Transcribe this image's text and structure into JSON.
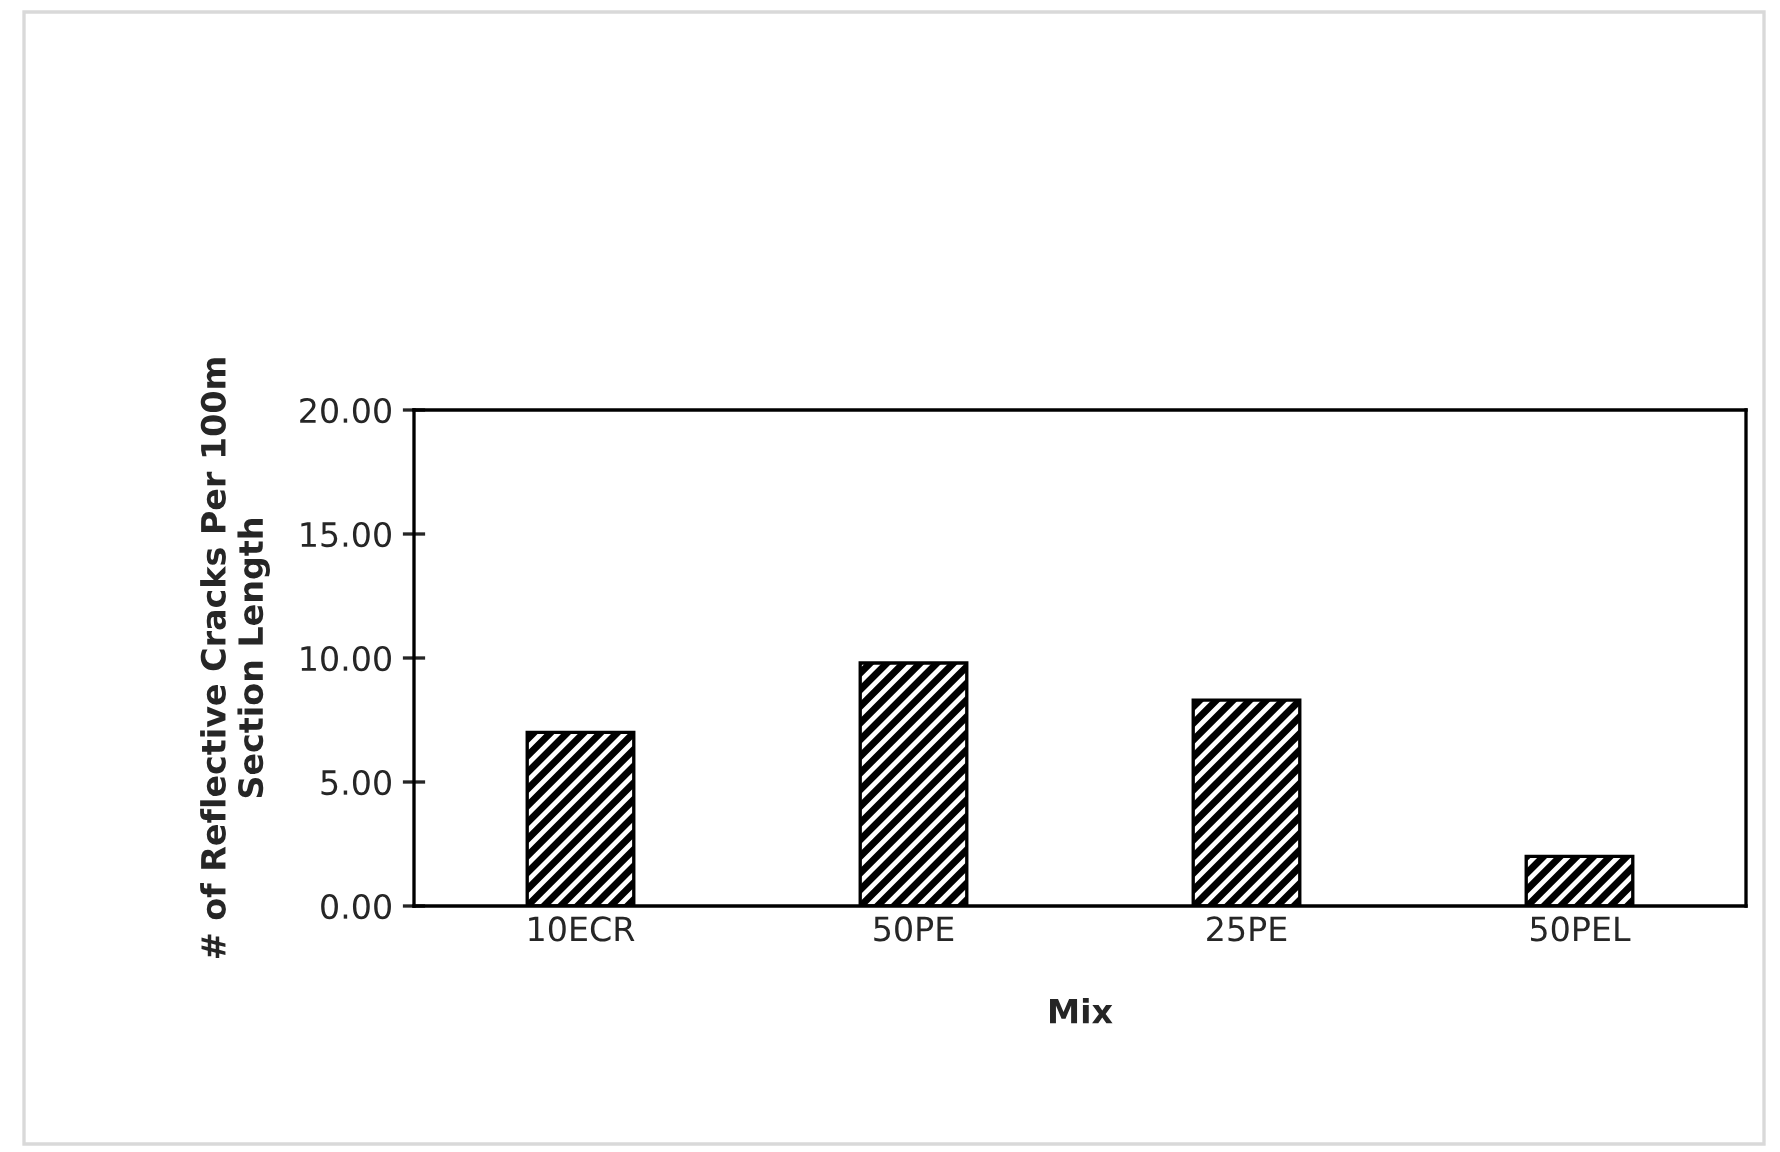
{
  "chart_data": {
    "type": "bar",
    "xlabel": "Mix",
    "ylabel": "# of Reflective Cracks Per 100m\nSection Length",
    "categories": [
      "10ECR",
      "50PE",
      "25PE",
      "50PEL"
    ],
    "values": [
      7.0,
      9.8,
      8.3,
      2.0
    ],
    "color": "#000000",
    "ylim": [
      0,
      20
    ],
    "yticks": [
      {
        "value": 0,
        "label": "0.00"
      },
      {
        "value": 5,
        "label": "5.00"
      },
      {
        "value": 10,
        "label": "10.00"
      },
      {
        "value": 15,
        "label": "15.00"
      },
      {
        "value": 20,
        "label": "20.00"
      }
    ],
    "grid": false
  }
}
